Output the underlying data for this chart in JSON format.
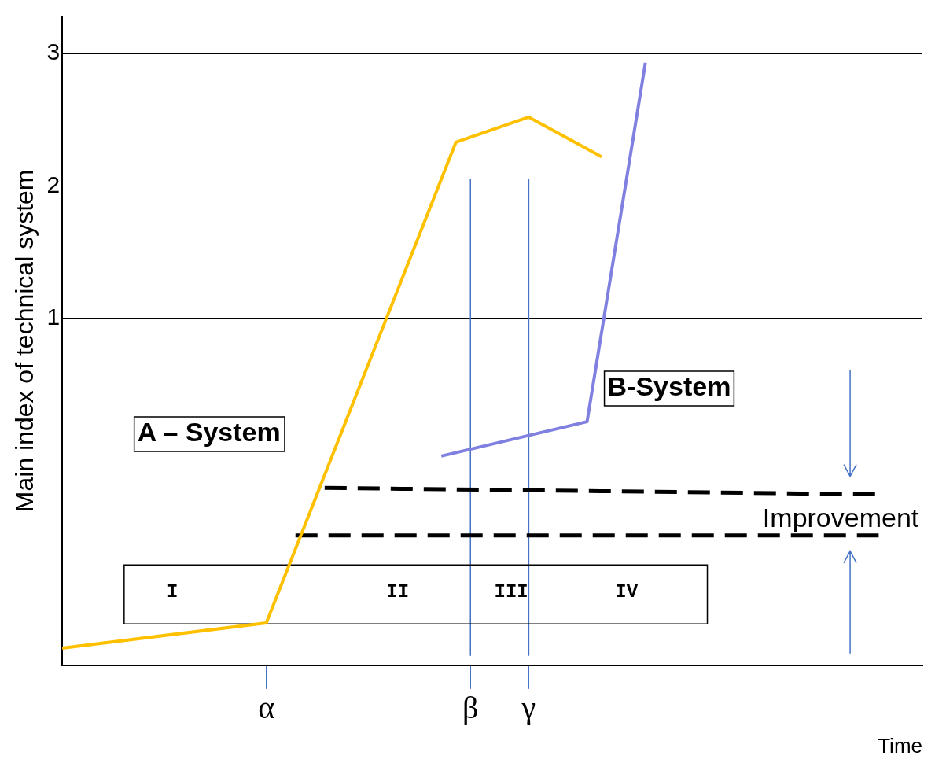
{
  "chart_data": {
    "type": "line",
    "xlabel": "Time",
    "ylabel": "Main index of technical system",
    "categories": [
      null,
      null,
      null,
      null,
      null,
      null,
      null,
      null,
      null,
      null,
      null,
      null,
      null,
      null,
      "α",
      null,
      null,
      null,
      null,
      null,
      null,
      null,
      null,
      null,
      null,
      null,
      null,
      null,
      "β",
      null,
      null,
      null,
      "γ",
      null,
      null,
      null,
      null,
      null,
      null,
      null,
      null,
      null,
      null,
      null,
      null,
      null,
      null,
      null,
      null,
      null,
      null,
      null,
      null,
      null,
      null,
      null,
      null,
      null,
      null,
      null
    ],
    "ylim": [
      -1.62,
      3.28
    ],
    "yticks": [
      1,
      2,
      3
    ],
    "grid": "y",
    "legend": false,
    "marker": "none",
    "series": [
      {
        "name": "A – System",
        "color": "#ffc000",
        "values": [
          -1.49,
          null,
          null,
          null,
          null,
          null,
          null,
          null,
          null,
          null,
          null,
          null,
          null,
          null,
          -1.3,
          null,
          null,
          null,
          null,
          null,
          null,
          null,
          null,
          null,
          null,
          null,
          null,
          2.33,
          null,
          null,
          null,
          null,
          2.52,
          null,
          null,
          null,
          null,
          2.22,
          null,
          null,
          null,
          null,
          null,
          null,
          null,
          null,
          null,
          null,
          null,
          null,
          null,
          null,
          null,
          null,
          null,
          null,
          null,
          null,
          null,
          null
        ]
      },
      {
        "name": "B-System",
        "color": "#8080e0",
        "values": [
          null,
          null,
          null,
          null,
          null,
          null,
          null,
          null,
          null,
          null,
          null,
          null,
          null,
          null,
          null,
          null,
          null,
          null,
          null,
          null,
          null,
          null,
          null,
          null,
          null,
          null,
          -0.04,
          null,
          null,
          null,
          null,
          null,
          null,
          null,
          null,
          null,
          0.22,
          null,
          null,
          null,
          2.93,
          null,
          null,
          null,
          null,
          null,
          null,
          null,
          null,
          null,
          null,
          null,
          null,
          null,
          null,
          null,
          null,
          null,
          null,
          null
        ]
      },
      {
        "color": "#000000",
        "line_style": "dashed",
        "values": [
          null,
          null,
          null,
          null,
          null,
          null,
          null,
          null,
          null,
          null,
          null,
          null,
          null,
          null,
          null,
          null,
          null,
          null,
          -0.28,
          null,
          null,
          null,
          null,
          null,
          null,
          null,
          null,
          null,
          null,
          null,
          null,
          null,
          null,
          null,
          null,
          null,
          null,
          null,
          null,
          null,
          null,
          null,
          null,
          null,
          null,
          null,
          null,
          null,
          null,
          null,
          null,
          null,
          null,
          null,
          null,
          null,
          -0.33,
          null,
          null,
          null
        ]
      },
      {
        "color": "#000000",
        "line_style": "dashed",
        "values": [
          null,
          null,
          null,
          null,
          null,
          null,
          null,
          null,
          null,
          null,
          null,
          null,
          null,
          null,
          null,
          null,
          -0.64,
          null,
          null,
          null,
          null,
          null,
          null,
          null,
          null,
          null,
          null,
          null,
          null,
          null,
          null,
          null,
          null,
          null,
          null,
          null,
          null,
          null,
          null,
          null,
          null,
          null,
          null,
          null,
          null,
          null,
          null,
          null,
          null,
          null,
          null,
          null,
          null,
          null,
          null,
          null,
          -0.64,
          null,
          null,
          null
        ]
      }
    ],
    "ref_lines": [
      {
        "axis": "x",
        "value": "β",
        "color": "#4472c4"
      },
      {
        "axis": "x",
        "value": "γ",
        "color": "#4472c4"
      }
    ],
    "annotations": [
      "I",
      "II",
      "III",
      "IV",
      "Improvement"
    ]
  }
}
